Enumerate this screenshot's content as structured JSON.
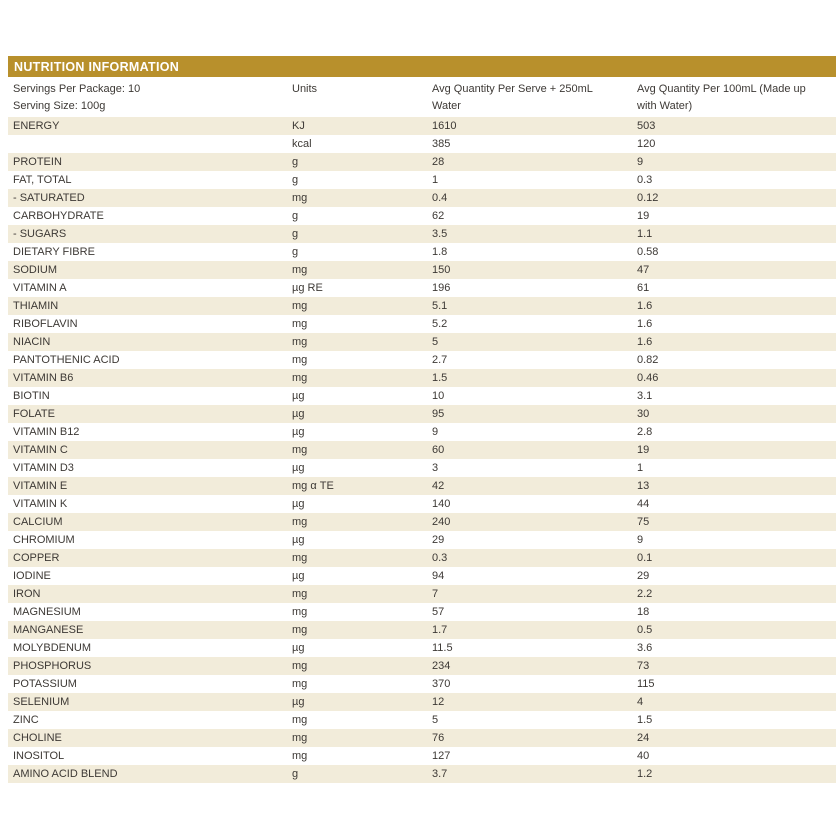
{
  "title": "NUTRITION INFORMATION",
  "colors": {
    "header_bg": "#B8902C",
    "row_shaded_bg": "#F2ECDA",
    "header_text": "#FFFFFF",
    "body_text": "#3D3935"
  },
  "meta": {
    "servings_per_package": "Servings Per Package: 10",
    "serving_size": "Serving Size: 100g"
  },
  "columns": {
    "units": "Units",
    "per_serve": "Avg Quantity Per Serve + 250mL Water",
    "per_100ml": "Avg Quantity Per 100mL (Made up with Water)"
  },
  "table": {
    "rows": [
      {
        "name": "ENERGY",
        "unit": "KJ",
        "per_serve": "1610",
        "per_100ml": "503"
      },
      {
        "name": "",
        "unit": "kcal",
        "per_serve": "385",
        "per_100ml": "120"
      },
      {
        "name": "PROTEIN",
        "unit": "g",
        "per_serve": "28",
        "per_100ml": "9"
      },
      {
        "name": "FAT, TOTAL",
        "unit": "g",
        "per_serve": "1",
        "per_100ml": "0.3"
      },
      {
        "name": "- SATURATED",
        "unit": "mg",
        "per_serve": "0.4",
        "per_100ml": "0.12"
      },
      {
        "name": "CARBOHYDRATE",
        "unit": "g",
        "per_serve": "62",
        "per_100ml": "19"
      },
      {
        "name": "- SUGARS",
        "unit": "g",
        "per_serve": "3.5",
        "per_100ml": "1.1"
      },
      {
        "name": "DIETARY FIBRE",
        "unit": "g",
        "per_serve": "1.8",
        "per_100ml": "0.58"
      },
      {
        "name": "SODIUM",
        "unit": "mg",
        "per_serve": "150",
        "per_100ml": "47"
      },
      {
        "name": "VITAMIN A",
        "unit": "µg RE",
        "per_serve": "196",
        "per_100ml": "61"
      },
      {
        "name": "THIAMIN",
        "unit": "mg",
        "per_serve": "5.1",
        "per_100ml": "1.6"
      },
      {
        "name": "RIBOFLAVIN",
        "unit": "mg",
        "per_serve": "5.2",
        "per_100ml": "1.6"
      },
      {
        "name": "NIACIN",
        "unit": "mg",
        "per_serve": "5",
        "per_100ml": "1.6"
      },
      {
        "name": "PANTOTHENIC ACID",
        "unit": "mg",
        "per_serve": "2.7",
        "per_100ml": "0.82"
      },
      {
        "name": "VITAMIN B6",
        "unit": "mg",
        "per_serve": "1.5",
        "per_100ml": "0.46"
      },
      {
        "name": "BIOTIN",
        "unit": "µg",
        "per_serve": "10",
        "per_100ml": "3.1"
      },
      {
        "name": "FOLATE",
        "unit": "µg",
        "per_serve": "95",
        "per_100ml": "30"
      },
      {
        "name": "VITAMIN B12",
        "unit": "µg",
        "per_serve": "9",
        "per_100ml": "2.8"
      },
      {
        "name": "VITAMIN C",
        "unit": "mg",
        "per_serve": "60",
        "per_100ml": "19"
      },
      {
        "name": "VITAMIN D3",
        "unit": "µg",
        "per_serve": "3",
        "per_100ml": "1"
      },
      {
        "name": "VITAMIN E",
        "unit": "mg α TE",
        "per_serve": "42",
        "per_100ml": "13"
      },
      {
        "name": "VITAMIN K",
        "unit": "µg",
        "per_serve": "140",
        "per_100ml": "44"
      },
      {
        "name": "CALCIUM",
        "unit": "mg",
        "per_serve": "240",
        "per_100ml": "75"
      },
      {
        "name": "CHROMIUM",
        "unit": "µg",
        "per_serve": "29",
        "per_100ml": "9"
      },
      {
        "name": "COPPER",
        "unit": "mg",
        "per_serve": "0.3",
        "per_100ml": "0.1"
      },
      {
        "name": "IODINE",
        "unit": "µg",
        "per_serve": "94",
        "per_100ml": "29"
      },
      {
        "name": "IRON",
        "unit": "mg",
        "per_serve": "7",
        "per_100ml": "2.2"
      },
      {
        "name": "MAGNESIUM",
        "unit": "mg",
        "per_serve": "57",
        "per_100ml": "18"
      },
      {
        "name": "MANGANESE",
        "unit": "mg",
        "per_serve": "1.7",
        "per_100ml": "0.5"
      },
      {
        "name": "MOLYBDENUM",
        "unit": "µg",
        "per_serve": "11.5",
        "per_100ml": "3.6"
      },
      {
        "name": "PHOSPHORUS",
        "unit": "mg",
        "per_serve": "234",
        "per_100ml": "73"
      },
      {
        "name": "POTASSIUM",
        "unit": "mg",
        "per_serve": "370",
        "per_100ml": "115"
      },
      {
        "name": "SELENIUM",
        "unit": "µg",
        "per_serve": "12",
        "per_100ml": "4"
      },
      {
        "name": "ZINC",
        "unit": "mg",
        "per_serve": "5",
        "per_100ml": "1.5"
      },
      {
        "name": "CHOLINE",
        "unit": "mg",
        "per_serve": "76",
        "per_100ml": "24"
      },
      {
        "name": "INOSITOL",
        "unit": "mg",
        "per_serve": "127",
        "per_100ml": "40"
      },
      {
        "name": "AMINO ACID BLEND",
        "unit": "g",
        "per_serve": "3.7",
        "per_100ml": "1.2"
      }
    ]
  }
}
